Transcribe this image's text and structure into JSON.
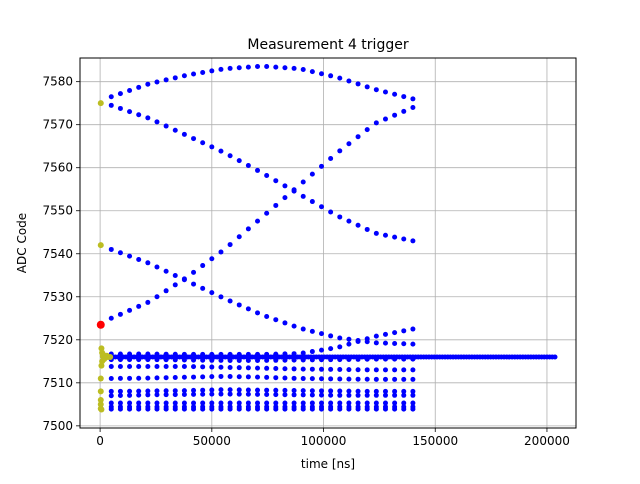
{
  "chart_data": {
    "type": "scatter",
    "title": "Measurement 4 trigger",
    "xlabel": "time [ns]",
    "ylabel": "ADC Code",
    "xlim": [
      -9000,
      213000
    ],
    "ylim": [
      7499.5,
      7585.5
    ],
    "xticks": [
      0,
      50000,
      100000,
      150000,
      200000
    ],
    "xtick_labels": [
      "0",
      "50000",
      "100000",
      "150000",
      "200000"
    ],
    "yticks": [
      7500,
      7510,
      7520,
      7530,
      7540,
      7550,
      7560,
      7570,
      7580
    ],
    "ytick_labels": [
      "7500",
      "7510",
      "7520",
      "7530",
      "7540",
      "7550",
      "7560",
      "7570",
      "7580"
    ],
    "grid": true,
    "colors": {
      "main": "#0000ff",
      "trigger": "#bcbd22",
      "marker": "#ff0000"
    },
    "series": [
      {
        "color": "#0000ff",
        "dense_band": {
          "y": 7516,
          "x_start": 2000,
          "x_end": 204000,
          "step": 1200
        },
        "traces": [
          {
            "x0": 5000,
            "x1": 140000,
            "y": [
              7576.5,
              7579.5,
              7581.5,
              7583,
              7583.6,
              7583,
              7581,
              7578.2,
              7576
            ]
          },
          {
            "x0": 5000,
            "x1": 140000,
            "y": [
              7574.5,
              7571.5,
              7567.5,
              7563.5,
              7558.8,
              7553.8,
              7548.8,
              7544.8,
              7543
            ]
          },
          {
            "x0": 5000,
            "x1": 140000,
            "y": [
              7541,
              7537.8,
              7533.7,
              7529.6,
              7525.8,
              7522.7,
              7520.5,
              7519.3,
              7519
            ]
          },
          {
            "x0": 5000,
            "x1": 140000,
            "y": [
              7525,
              7528.8,
              7534.5,
              7541,
              7548.5,
              7556,
              7563.5,
              7570.3,
              7574
            ]
          },
          {
            "x0": 5000,
            "x1": 140000,
            "y": [
              7516.7,
              7516.7,
              7516.6,
              7516.6,
              7516.6,
              7516.8,
              7518.2,
              7520.8,
              7522.5
            ]
          },
          {
            "x0": 5000,
            "x1": 140000,
            "y": [
              7515.4,
              7515.4,
              7515.3,
              7515.2,
              7515.2,
              7515.3,
              7515.4,
              7515.5,
              7515.5
            ]
          },
          {
            "x0": 5000,
            "x1": 140000,
            "y": [
              7513.8,
              7513.8,
              7513.8,
              7513.6,
              7513.4,
              7513.2,
              7513.1,
              7513,
              7513
            ]
          },
          {
            "x0": 5000,
            "x1": 140000,
            "y": [
              7511,
              7511.1,
              7511.3,
              7511.5,
              7511.3,
              7511,
              7510.9,
              7510.8,
              7510.8
            ]
          },
          {
            "x0": 5000,
            "x1": 140000,
            "y": [
              7508,
              7508.1,
              7508.2,
              7508.4,
              7508.3,
              7508.2,
              7508.1,
              7508,
              7508
            ]
          },
          {
            "x0": 5000,
            "x1": 140000,
            "y": [
              7507,
              7507.2,
              7507.3,
              7507.4,
              7507.3,
              7507.2,
              7507.1,
              7507.1,
              7507.1
            ]
          },
          {
            "x0": 5000,
            "x1": 140000,
            "y": [
              7505.3,
              7505.3,
              7505.3,
              7505.3,
              7505.3,
              7505.3,
              7505.3,
              7505.3,
              7505.3
            ]
          },
          {
            "x0": 5000,
            "x1": 140000,
            "y": [
              7504.4,
              7504.4,
              7504.4,
              7504.4,
              7504.4,
              7504.4,
              7504.4,
              7504.4,
              7504.4
            ]
          },
          {
            "x0": 5000,
            "x1": 140000,
            "y": [
              7503.9,
              7503.9,
              7503.9,
              7503.9,
              7503.9,
              7503.9,
              7503.9,
              7503.9,
              7503.9
            ]
          }
        ],
        "trace_points": 34
      },
      {
        "color": "#bcbd22",
        "points": [
          [
            300,
            7575
          ],
          [
            300,
            7542
          ],
          [
            600,
            7518
          ],
          [
            900,
            7517
          ],
          [
            1500,
            7516.5
          ],
          [
            2500,
            7516
          ],
          [
            3500,
            7516
          ],
          [
            4500,
            7516
          ],
          [
            900,
            7515
          ],
          [
            600,
            7514
          ],
          [
            300,
            7511
          ],
          [
            300,
            7508
          ],
          [
            300,
            7506
          ],
          [
            300,
            7505
          ],
          [
            300,
            7504
          ],
          [
            600,
            7503.8
          ],
          [
            1800,
            7515.5
          ],
          [
            3000,
            7516.3
          ],
          [
            1200,
            7516.2
          ]
        ]
      },
      {
        "color": "#ff0000",
        "points": [
          [
            300,
            7523.5
          ]
        ]
      }
    ]
  }
}
